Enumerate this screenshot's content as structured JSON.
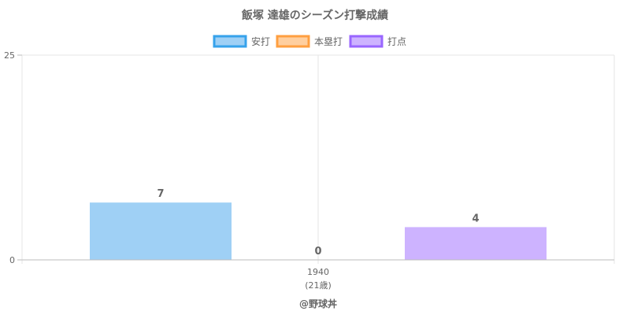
{
  "chart_data": {
    "type": "bar",
    "title": "飯塚 達雄のシーズン打撃成績",
    "categories": [
      "1940"
    ],
    "category_sublabels": [
      "(21歳)"
    ],
    "series": [
      {
        "name": "安打",
        "values": [
          7
        ],
        "fill": "#9fd0f5",
        "stroke": "#36a2eb"
      },
      {
        "name": "本塁打",
        "values": [
          0
        ],
        "fill": "#ffcf9f",
        "stroke": "#ff9f40"
      },
      {
        "name": "打点",
        "values": [
          4
        ],
        "fill": "#cdb3ff",
        "stroke": "#9966ff"
      }
    ],
    "ylim": [
      0,
      25
    ],
    "y_ticks": [
      0,
      25
    ],
    "grid": true,
    "legend_position": "top",
    "xlabel": "",
    "ylabel": ""
  },
  "credit": "@野球丼"
}
